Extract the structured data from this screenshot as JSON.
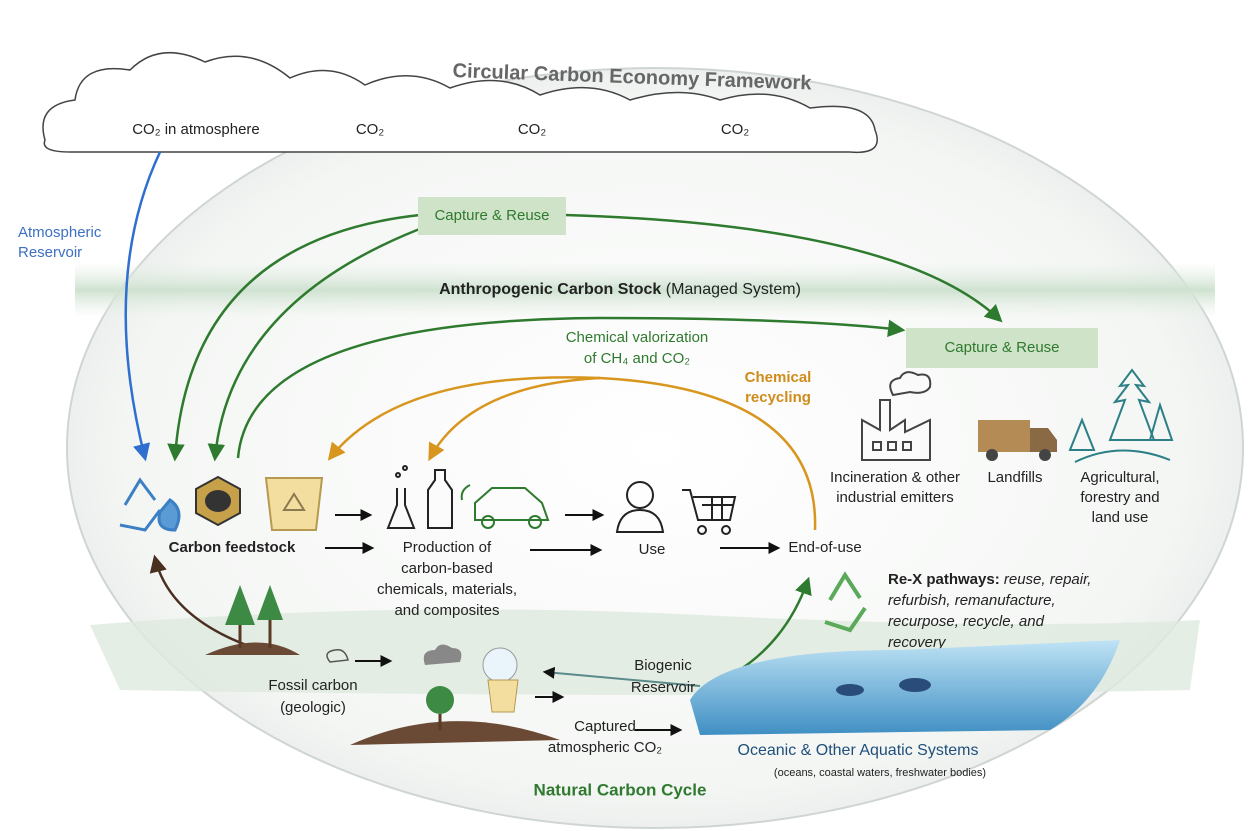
{
  "title": "Circular Carbon Economy Framework",
  "clouds": [
    "CO₂ in atmosphere",
    "CO₂",
    "CO₂",
    "CO₂"
  ],
  "atmospheric_reservoir": [
    "Atmospheric",
    "Reservoir"
  ],
  "capture_reuse_top": "Capture & Reuse",
  "anthropogenic": {
    "name": "Anthropogenic Carbon Stock",
    "note": "(Managed System)"
  },
  "valorization": [
    "Chemical valorization",
    "of CH₄ and CO₂"
  ],
  "capture_reuse_right": "Capture & Reuse",
  "chemical_recycling": [
    "Chemical",
    "recycling"
  ],
  "emitters": [
    [
      "Incineration & other",
      "industrial emitters"
    ],
    [
      "Landfills"
    ],
    [
      "Agricultural,",
      "forestry and",
      "land use"
    ]
  ],
  "flow": {
    "feedstock": "Carbon feedstock",
    "production": [
      "Production of",
      "carbon-based",
      "chemicals, materials,",
      "and composites"
    ],
    "use": "Use",
    "end_of_use": "End-of-use"
  },
  "rex": {
    "title": "Re-X pathways:",
    "lines": [
      "reuse, repair,",
      "refurbish, remanufacture,",
      "recurpose, recycle, and",
      "recovery"
    ]
  },
  "fossil": [
    "Fossil carbon",
    "(geologic)"
  ],
  "biogenic": [
    "Biogenic",
    "Reservoir"
  ],
  "captured": [
    "Captured",
    "atmospheric CO₂"
  ],
  "oceanic": {
    "title": "Oceanic & Other Aquatic Systems",
    "subtitle": "(oceans, coastal waters, freshwater bodies)"
  },
  "natural": "Natural Carbon Cycle"
}
